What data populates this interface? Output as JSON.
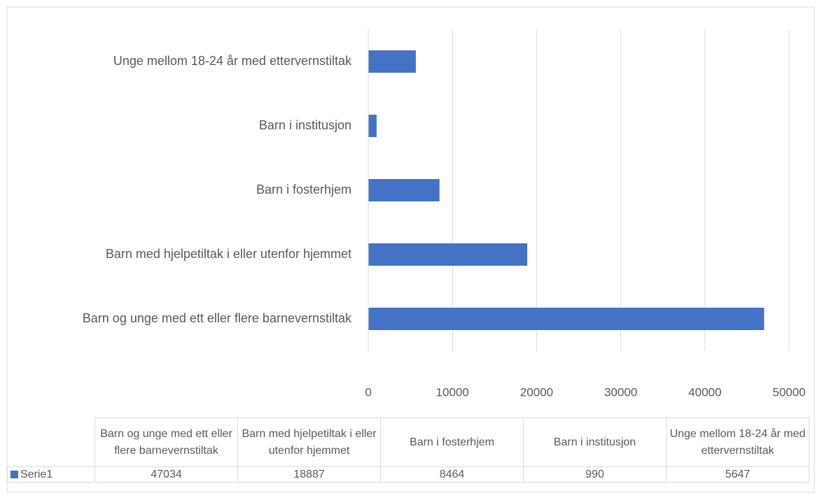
{
  "chart_data": {
    "type": "bar",
    "orientation": "horizontal",
    "categories": [
      "Barn og unge med ett eller flere barnevernstiltak",
      "Barn med hjelpetiltak i eller utenfor hjemmet",
      "Barn i fosterhjem",
      "Barn i institusjon",
      "Unge mellom 18-24 år med ettervernstiltak"
    ],
    "series": [
      {
        "name": "Serie1",
        "color": "#4472c4",
        "values": [
          47034,
          18887,
          8464,
          990,
          5647
        ]
      }
    ],
    "xlim": [
      0,
      50000
    ],
    "xticks": [
      0,
      10000,
      20000,
      30000,
      40000,
      50000
    ],
    "grid": true,
    "data_table": true
  }
}
